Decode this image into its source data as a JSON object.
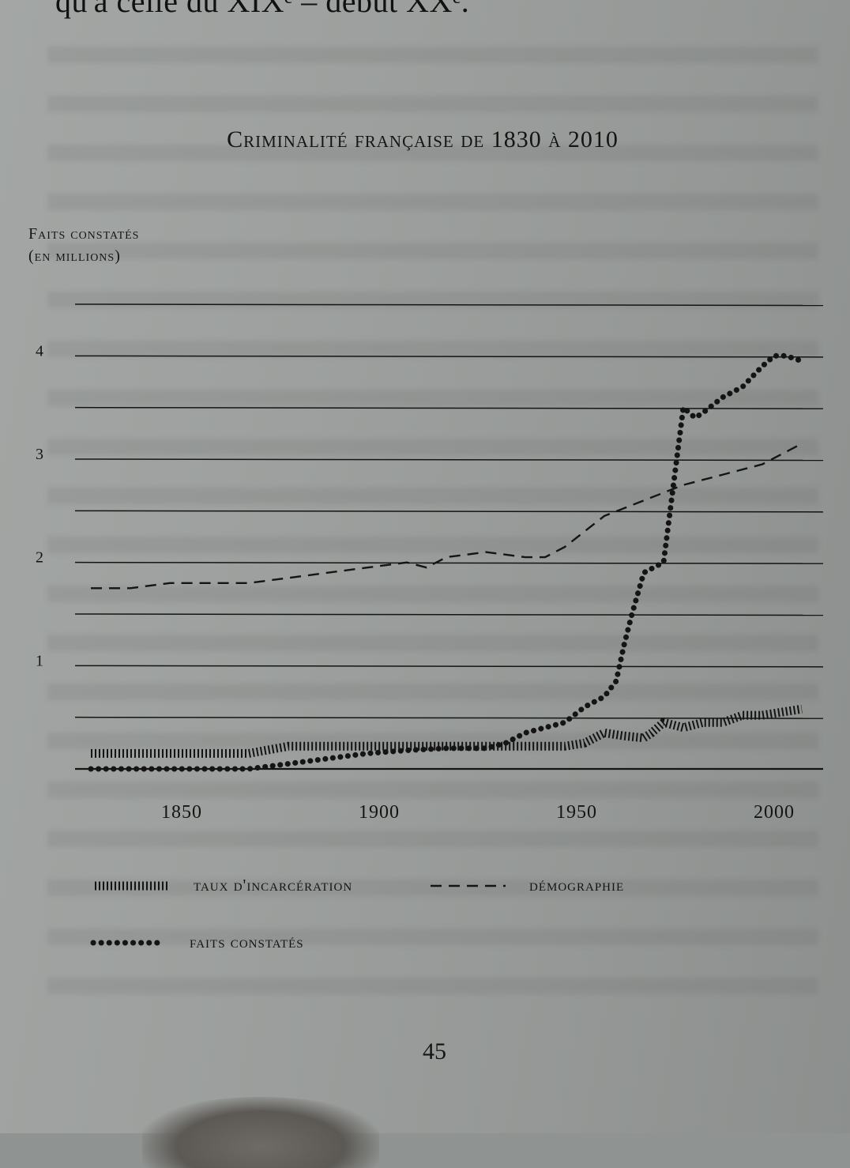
{
  "page": {
    "top_text": "qu'à celle du XIXᵉ – début XXᵉ.",
    "page_number": "45"
  },
  "chart_data": {
    "type": "line",
    "title": "Criminalité française de 1830 à 2010",
    "ylabel_line1": "Faits constatés",
    "ylabel_line2": "(en millions)",
    "xlabel": "",
    "xlim": [
      1830,
      2015
    ],
    "ylim": [
      0,
      4.5
    ],
    "x_ticks": [
      {
        "value": 1850,
        "label": "1850"
      },
      {
        "value": 1900,
        "label": "1900"
      },
      {
        "value": 1950,
        "label": "1950"
      },
      {
        "value": 2000,
        "label": "2000"
      }
    ],
    "y_ticks": [
      {
        "value": 1,
        "label": "1"
      },
      {
        "value": 2,
        "label": "2"
      },
      {
        "value": 3,
        "label": "3"
      },
      {
        "value": 4,
        "label": "4"
      }
    ],
    "gridlines": [
      0,
      0.5,
      1,
      1.5,
      2,
      2.5,
      3,
      3.5,
      4,
      4.5
    ],
    "grid": true,
    "legend_position": "bottom",
    "series": [
      {
        "name": "taux d'incarcération",
        "style": "hatched",
        "x": [
          1830,
          1850,
          1870,
          1880,
          1900,
          1920,
          1930,
          1940,
          1950,
          1955,
          1960,
          1965,
          1970,
          1972,
          1975,
          1980,
          1985,
          1990,
          1995,
          2000,
          2005,
          2010
        ],
        "y": [
          0.15,
          0.15,
          0.15,
          0.22,
          0.22,
          0.22,
          0.22,
          0.22,
          0.22,
          0.25,
          0.35,
          0.32,
          0.3,
          0.35,
          0.45,
          0.4,
          0.45,
          0.45,
          0.52,
          0.52,
          0.55,
          0.58
        ]
      },
      {
        "name": "démographie",
        "style": "dashed",
        "x": [
          1830,
          1840,
          1850,
          1860,
          1870,
          1880,
          1890,
          1900,
          1910,
          1915,
          1920,
          1930,
          1940,
          1945,
          1950,
          1955,
          1960,
          1970,
          1980,
          1990,
          2000,
          2010
        ],
        "y": [
          1.75,
          1.75,
          1.8,
          1.8,
          1.8,
          1.85,
          1.9,
          1.95,
          2.0,
          1.95,
          2.05,
          2.1,
          2.05,
          2.05,
          2.15,
          2.3,
          2.45,
          2.6,
          2.75,
          2.85,
          2.95,
          3.15
        ]
      },
      {
        "name": "faits constatés",
        "style": "dotted",
        "x": [
          1830,
          1850,
          1870,
          1880,
          1890,
          1900,
          1910,
          1920,
          1930,
          1935,
          1940,
          1945,
          1950,
          1955,
          1960,
          1963,
          1965,
          1967,
          1970,
          1975,
          1977,
          1980,
          1983,
          1985,
          1990,
          1995,
          2000,
          2003,
          2006,
          2010
        ],
        "y": [
          0.0,
          0.0,
          0.0,
          0.05,
          0.1,
          0.15,
          0.18,
          0.2,
          0.2,
          0.25,
          0.35,
          0.4,
          0.45,
          0.6,
          0.7,
          0.85,
          1.2,
          1.5,
          1.9,
          2.0,
          2.6,
          3.5,
          3.4,
          3.45,
          3.6,
          3.7,
          3.9,
          4.0,
          4.0,
          3.95
        ]
      }
    ]
  }
}
